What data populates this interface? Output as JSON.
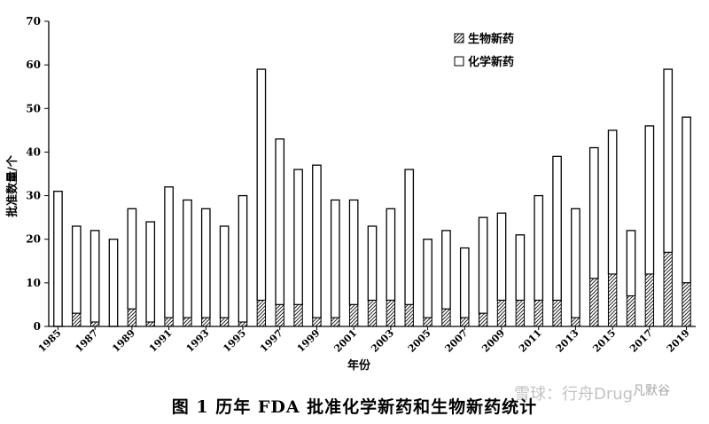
{
  "chart_data": {
    "type": "bar",
    "stacked": true,
    "categories": [
      "1985",
      "1986",
      "1987",
      "1988",
      "1989",
      "1990",
      "1991",
      "1992",
      "1993",
      "1994",
      "1995",
      "1996",
      "1997",
      "1998",
      "1999",
      "2000",
      "2001",
      "2002",
      "2003",
      "2004",
      "2005",
      "2006",
      "2007",
      "2008",
      "2009",
      "2010",
      "2011",
      "2012",
      "2013",
      "2014",
      "2015",
      "2016",
      "2017",
      "2018",
      "2019"
    ],
    "tick_labels": [
      "1985",
      "1987",
      "1989",
      "1991",
      "1993",
      "1995",
      "1997",
      "1999",
      "2001",
      "2003",
      "2005",
      "2007",
      "2009",
      "2011",
      "2013",
      "2015",
      "2017",
      "2019"
    ],
    "series": [
      {
        "name": "生物新药",
        "pattern": "hatched",
        "values": [
          0,
          3,
          1,
          0,
          4,
          1,
          2,
          2,
          2,
          2,
          1,
          6,
          5,
          5,
          2,
          2,
          5,
          6,
          6,
          5,
          2,
          4,
          2,
          3,
          6,
          6,
          6,
          6,
          2,
          11,
          12,
          7,
          12,
          17,
          10
        ]
      },
      {
        "name": "化学新药",
        "pattern": "empty",
        "values": [
          31,
          20,
          21,
          20,
          23,
          23,
          30,
          27,
          25,
          21,
          29,
          53,
          38,
          31,
          35,
          27,
          24,
          17,
          21,
          31,
          18,
          18,
          16,
          22,
          20,
          15,
          24,
          33,
          25,
          30,
          33,
          15,
          34,
          42,
          38
        ]
      }
    ],
    "totals": [
      31,
      23,
      22,
      20,
      27,
      24,
      32,
      29,
      27,
      23,
      30,
      59,
      43,
      36,
      37,
      29,
      29,
      23,
      27,
      36,
      20,
      22,
      18,
      25,
      26,
      21,
      30,
      39,
      27,
      41,
      45,
      22,
      46,
      59,
      48
    ],
    "xlabel": "年份",
    "ylabel": "批准数量/个",
    "ylim": [
      0,
      70
    ],
    "yticks": [
      0,
      10,
      20,
      30,
      40,
      50,
      60,
      70
    ],
    "legend_position": "top-right",
    "grid": false
  },
  "caption": "图 1    历年 FDA 批准化学新药和生物新药统计",
  "watermark": "雪球：行舟Drug",
  "watermark2": "凡默谷",
  "colors": {
    "axis": "#000000",
    "bar_fill": "#ffffff",
    "hatch": "#000000"
  }
}
